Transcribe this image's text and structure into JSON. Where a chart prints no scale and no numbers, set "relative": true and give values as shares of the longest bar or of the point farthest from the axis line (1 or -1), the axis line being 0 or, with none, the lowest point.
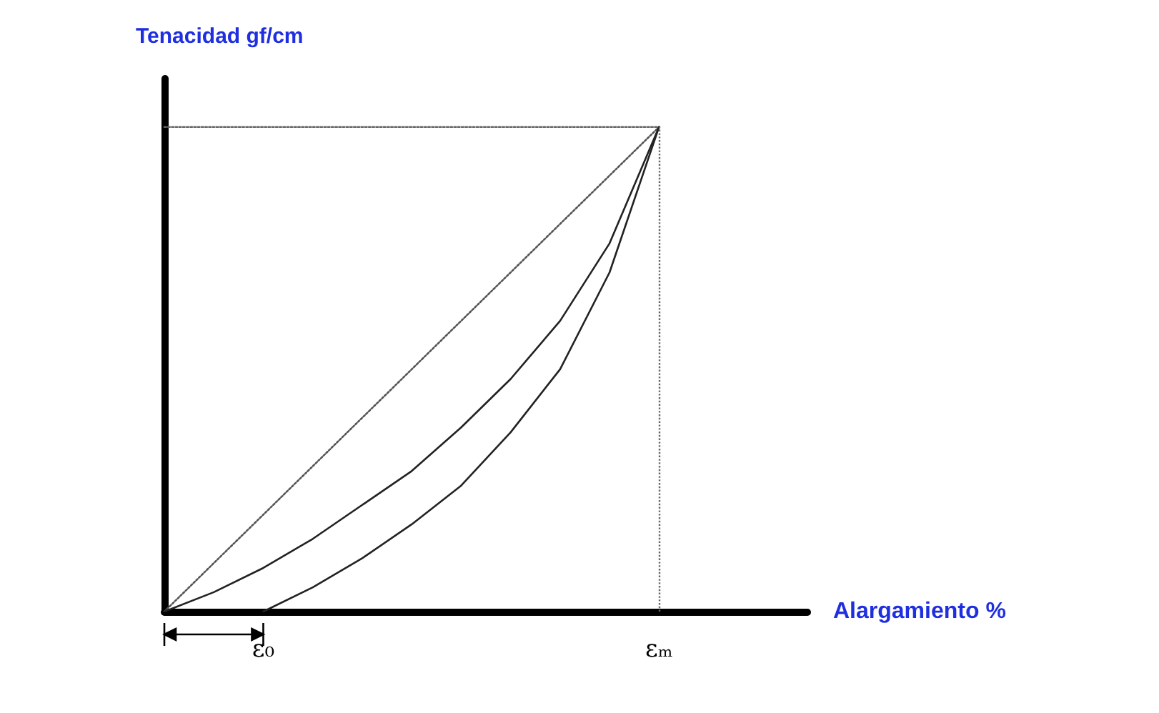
{
  "chart_data": {
    "type": "line",
    "relative": true,
    "ylabel": "Tenacidad gf/cm",
    "xlabel": "Alargamiento %",
    "categories": [
      null,
      null,
      "ε₀",
      null,
      null,
      null,
      null,
      null,
      null,
      null,
      "εₘ",
      null,
      null,
      null
    ],
    "marker": "none",
    "grid": false,
    "ref_lines": [
      {
        "axis": "x",
        "value": "εₘ",
        "line_style": "dotted",
        "color": "#666666"
      }
    ],
    "series": [
      {
        "color": "#666666",
        "line_style": "dotted",
        "values": [
          1,
          null,
          null,
          null,
          null,
          null,
          null,
          null,
          null,
          null,
          1,
          null,
          null,
          null
        ]
      },
      {
        "color": "#555555",
        "line_style": "dotted",
        "values": [
          0,
          null,
          null,
          null,
          null,
          null,
          null,
          null,
          null,
          null,
          1,
          null,
          null,
          null
        ]
      },
      {
        "color": "#222222",
        "line_style": "solid",
        "values": [
          0,
          0.04,
          0.09,
          0.15,
          0.22,
          0.29,
          0.38,
          0.48,
          0.6,
          0.76,
          1,
          null,
          null,
          null
        ]
      },
      {
        "color": "#222222",
        "line_style": "solid",
        "values": [
          null,
          null,
          0,
          0.05,
          0.11,
          0.18,
          0.26,
          0.37,
          0.5,
          0.7,
          1,
          null,
          null,
          null
        ]
      }
    ]
  }
}
